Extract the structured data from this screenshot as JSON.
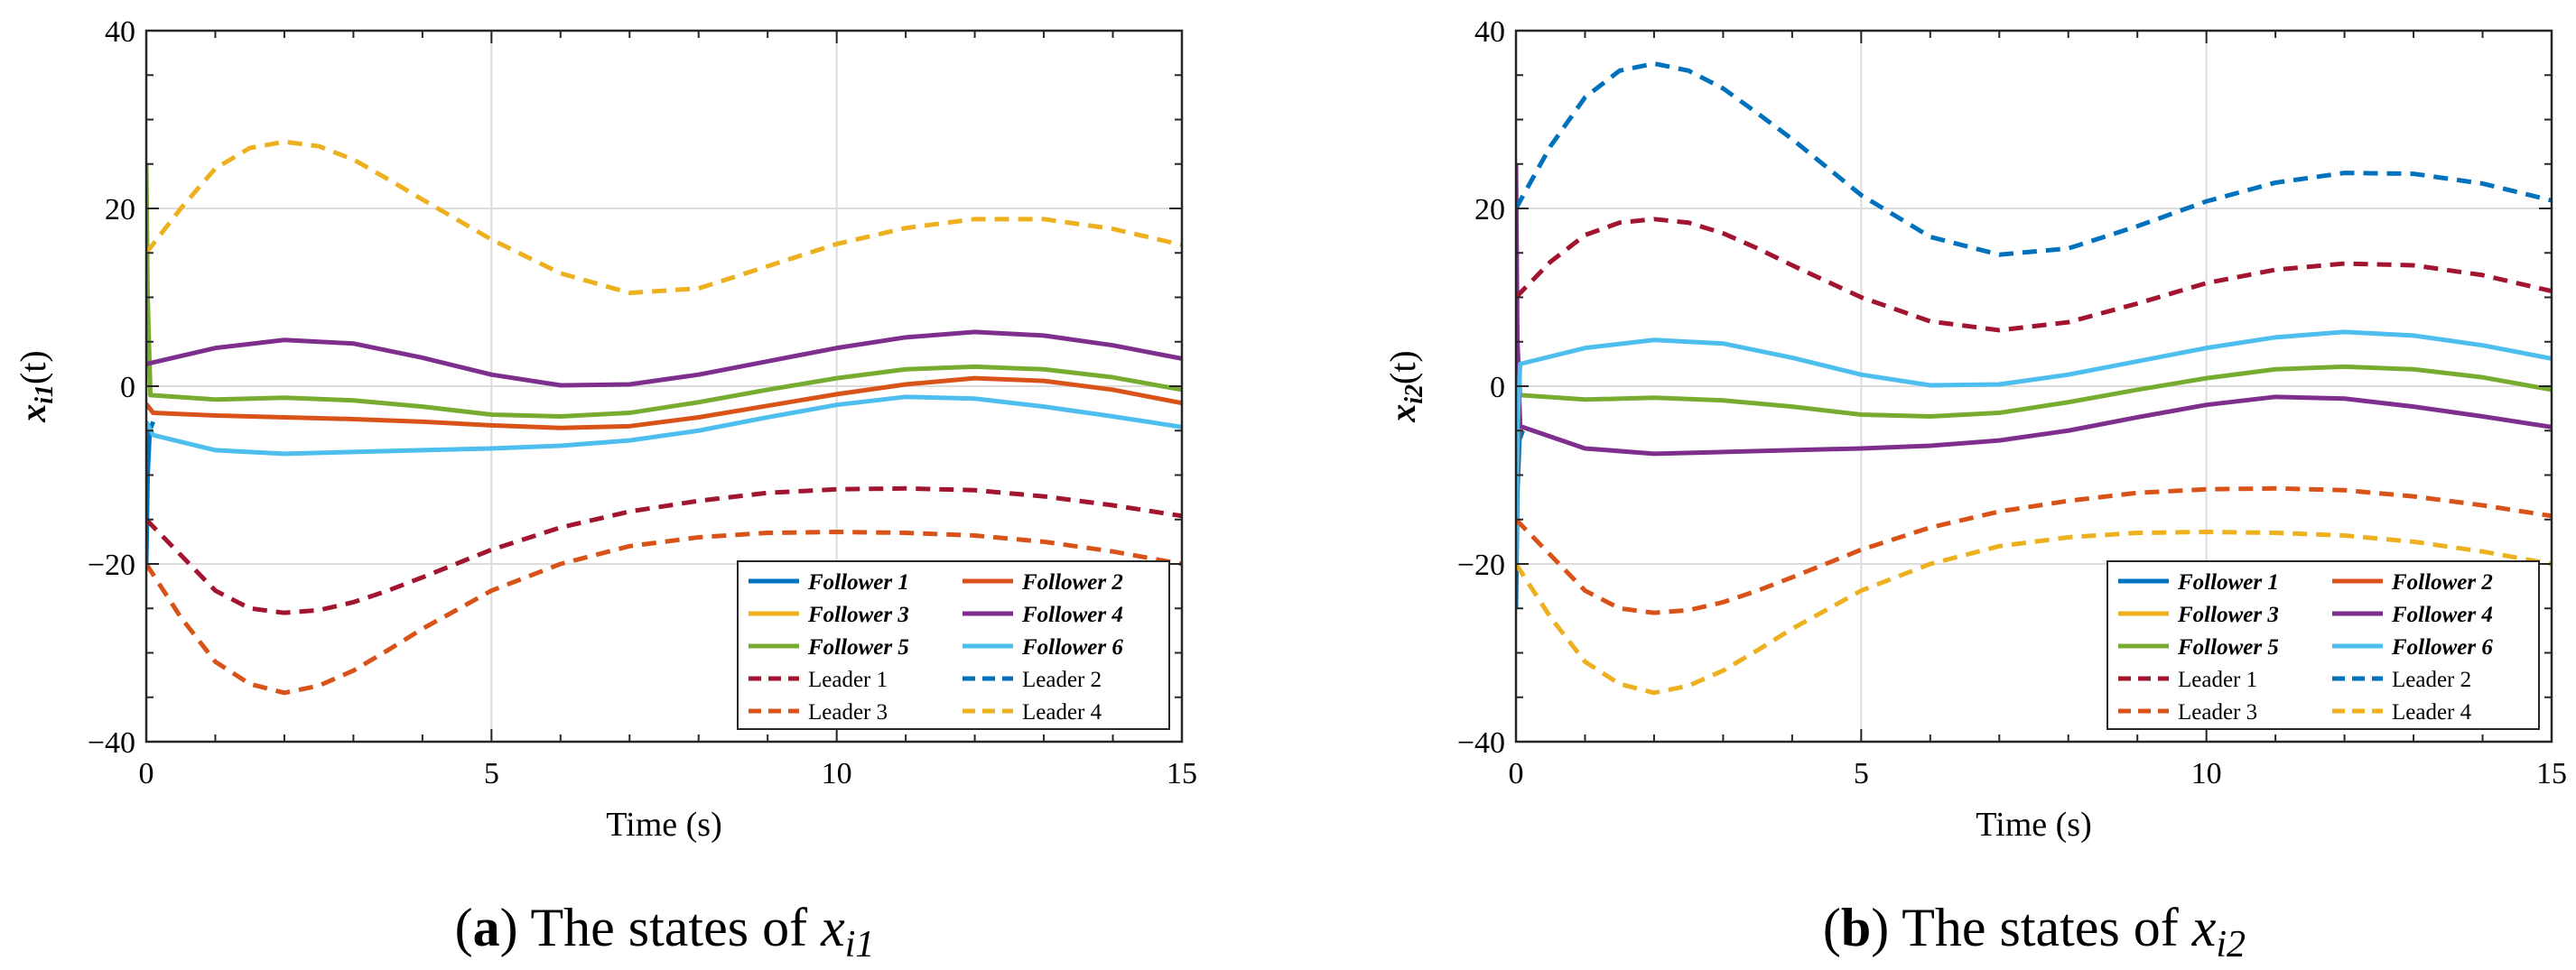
{
  "chart_data": [
    {
      "type": "line",
      "panel_id": "a",
      "caption_letter": "a",
      "caption_text": "The states of",
      "caption_var": "x",
      "caption_sub": "i1",
      "ylabel_var": "x",
      "ylabel_sub": "i1",
      "ylabel_arg": "(t)",
      "xlabel": "Time (s)",
      "xlim": [
        0,
        15
      ],
      "ylim": [
        -40,
        40
      ],
      "xticks": [
        "0",
        "5",
        "10",
        "15"
      ],
      "yticks": [
        "−40",
        "−20",
        "0",
        "20",
        "40"
      ],
      "grid": true,
      "legend_position": "lower-right",
      "legend_columns": 2,
      "series": [
        {
          "name": "Follower 1",
          "style": "solid",
          "color": "#0072BD",
          "t": [
            0,
            0.02,
            0.05,
            0.1
          ],
          "values": [
            -20,
            -10,
            -5,
            -4
          ]
        },
        {
          "name": "Follower 3",
          "style": "solid",
          "color": "#EDB120",
          "t": [
            0,
            0.02,
            0.05
          ],
          "values": [
            10,
            5,
            2
          ]
        },
        {
          "name": "Follower 5",
          "style": "solid",
          "color": "#77AC30",
          "t": [
            0,
            0.02,
            0.06,
            1,
            2,
            3,
            4,
            5,
            6,
            7,
            8,
            9,
            10,
            11,
            12,
            13,
            14,
            15
          ],
          "values": [
            25,
            10,
            -1,
            -1.5,
            -1.3,
            -1.6,
            -2.3,
            -3.2,
            -3.4,
            -3.0,
            -1.8,
            -0.4,
            0.9,
            1.9,
            2.2,
            1.9,
            1.0,
            -0.4
          ]
        },
        {
          "name": "Follower 2",
          "style": "solid",
          "color": "#D95319",
          "t": [
            0,
            0.1,
            1,
            2,
            3,
            4,
            5,
            6,
            7,
            8,
            9,
            10,
            11,
            12,
            13,
            14,
            15
          ],
          "values": [
            -2,
            -3,
            -3.3,
            -3.5,
            -3.7,
            -4.0,
            -4.4,
            -4.7,
            -4.5,
            -3.5,
            -2.2,
            -0.9,
            0.2,
            0.9,
            0.6,
            -0.4,
            -1.9
          ]
        },
        {
          "name": "Follower 4",
          "style": "solid",
          "color": "#7E2F8E",
          "t": [
            0,
            1,
            2,
            3,
            4,
            5,
            6,
            7,
            8,
            9,
            10,
            11,
            12,
            13,
            14,
            15
          ],
          "values": [
            2.5,
            4.3,
            5.2,
            4.8,
            3.2,
            1.3,
            0.1,
            0.2,
            1.3,
            2.8,
            4.3,
            5.5,
            6.1,
            5.7,
            4.6,
            3.1
          ]
        },
        {
          "name": "Follower 6",
          "style": "solid",
          "color": "#4DBEEE",
          "t": [
            0,
            0.1,
            1,
            2,
            3,
            4,
            5,
            6,
            7,
            8,
            9,
            10,
            11,
            12,
            13,
            14,
            15
          ],
          "values": [
            -4,
            -5.5,
            -7.2,
            -7.6,
            -7.4,
            -7.2,
            -7.0,
            -6.7,
            -6.1,
            -5.0,
            -3.5,
            -2.1,
            -1.2,
            -1.4,
            -2.3,
            -3.4,
            -4.6
          ]
        },
        {
          "name": "Leader  1",
          "style": "dashed",
          "color": "#A2142F",
          "t": [
            0,
            0.5,
            1,
            1.5,
            2,
            2.5,
            3,
            3.5,
            4,
            5,
            6,
            7,
            8,
            9,
            10,
            11,
            12,
            13,
            14,
            15
          ],
          "values": [
            -15,
            -19,
            -23,
            -25,
            -25.5,
            -25.2,
            -24.3,
            -23.0,
            -21.5,
            -18.4,
            -15.9,
            -14.1,
            -12.9,
            -12.0,
            -11.6,
            -11.5,
            -11.7,
            -12.4,
            -13.4,
            -14.6
          ]
        },
        {
          "name": "Leader  2",
          "style": "dashed",
          "color": "#0072BD",
          "t": [],
          "values": []
        },
        {
          "name": "Leader  3",
          "style": "dashed",
          "color": "#D95319",
          "t": [
            0,
            0.5,
            1,
            1.5,
            2,
            2.5,
            3,
            3.5,
            4,
            5,
            6,
            7,
            8,
            9,
            10,
            11,
            12,
            13,
            14,
            15
          ],
          "values": [
            -20,
            -26,
            -31,
            -33.5,
            -34.5,
            -33.7,
            -32.0,
            -29.7,
            -27.3,
            -23.0,
            -20.0,
            -18.0,
            -17.0,
            -16.5,
            -16.4,
            -16.5,
            -16.8,
            -17.5,
            -18.6,
            -20.0
          ]
        },
        {
          "name": "Leader  4",
          "style": "dashed",
          "color": "#EDB120",
          "t": [
            0,
            0.5,
            1,
            1.5,
            2,
            2.5,
            3,
            3.5,
            4,
            5,
            6,
            7,
            8,
            9,
            10,
            11,
            12,
            13,
            14,
            15
          ],
          "values": [
            15,
            20,
            24.5,
            26.8,
            27.5,
            27.0,
            25.5,
            23.3,
            21.0,
            16.5,
            12.7,
            10.5,
            11.0,
            13.5,
            16.0,
            17.8,
            18.8,
            18.8,
            17.7,
            15.9
          ]
        }
      ]
    },
    {
      "type": "line",
      "panel_id": "b",
      "caption_letter": "b",
      "caption_text": "The states of",
      "caption_var": "x",
      "caption_sub": "i2",
      "ylabel_var": "x",
      "ylabel_sub": "i2",
      "ylabel_arg": "(t)",
      "xlabel": "Time (s)",
      "xlim": [
        0,
        15
      ],
      "ylim": [
        -40,
        40
      ],
      "xticks": [
        "0",
        "5",
        "10",
        "15"
      ],
      "yticks": [
        "−40",
        "−20",
        "0",
        "20",
        "40"
      ],
      "grid": true,
      "legend_position": "lower-right",
      "legend_columns": 2,
      "series": [
        {
          "name": "Follower 1",
          "style": "solid",
          "color": "#0072BD",
          "t": [
            0,
            0.02,
            0.05,
            0.1
          ],
          "values": [
            -25,
            -12,
            -6,
            -5
          ]
        },
        {
          "name": "Follower 3",
          "style": "solid",
          "color": "#EDB120",
          "t": [
            0,
            0.02,
            0.05
          ],
          "values": [
            5,
            3,
            1
          ]
        },
        {
          "name": "Follower 5",
          "style": "solid",
          "color": "#77AC30",
          "t": [
            0,
            0.02,
            0.06,
            1,
            2,
            3,
            4,
            5,
            6,
            7,
            8,
            9,
            10,
            11,
            12,
            13,
            14,
            15
          ],
          "values": [
            12,
            5,
            -1,
            -1.5,
            -1.3,
            -1.6,
            -2.3,
            -3.2,
            -3.4,
            -3.0,
            -1.8,
            -0.4,
            0.9,
            1.9,
            2.2,
            1.9,
            1.0,
            -0.4
          ]
        },
        {
          "name": "Follower 2",
          "style": "solid",
          "color": "#D95319",
          "t": [
            0,
            0.02,
            0.05
          ],
          "values": [
            -15,
            -8,
            -4
          ]
        },
        {
          "name": "Follower 4",
          "style": "solid",
          "color": "#7E2F8E",
          "t": [
            0,
            0.02,
            0.06,
            1,
            2,
            3,
            4,
            5,
            6,
            7,
            8,
            9,
            10,
            11,
            12,
            13,
            14,
            15
          ],
          "values": [
            25,
            5,
            -4.5,
            -7.0,
            -7.6,
            -7.4,
            -7.2,
            -7.0,
            -6.7,
            -6.1,
            -5.0,
            -3.5,
            -2.1,
            -1.2,
            -1.4,
            -2.3,
            -3.4,
            -4.6
          ]
        },
        {
          "name": "Follower 6",
          "style": "solid",
          "color": "#4DBEEE",
          "t": [
            0,
            0.02,
            0.06,
            1,
            2,
            3,
            4,
            5,
            6,
            7,
            8,
            9,
            10,
            11,
            12,
            13,
            14,
            15
          ],
          "values": [
            -20,
            -5,
            2.5,
            4.3,
            5.2,
            4.8,
            3.2,
            1.3,
            0.1,
            0.2,
            1.3,
            2.8,
            4.3,
            5.5,
            6.1,
            5.7,
            4.6,
            3.1
          ]
        },
        {
          "name": "Leader  1",
          "style": "dashed",
          "color": "#A2142F",
          "t": [
            0,
            0.5,
            1,
            1.5,
            2,
            2.5,
            3,
            3.5,
            4,
            5,
            6,
            7,
            8,
            9,
            10,
            11,
            12,
            13,
            14,
            15
          ],
          "values": [
            10,
            14,
            17,
            18.4,
            18.8,
            18.4,
            17.2,
            15.5,
            13.6,
            10.0,
            7.3,
            6.3,
            7.2,
            9.3,
            11.6,
            13.1,
            13.8,
            13.6,
            12.5,
            10.7
          ]
        },
        {
          "name": "Leader  2",
          "style": "dashed",
          "color": "#0072BD",
          "t": [
            0,
            0.5,
            1,
            1.5,
            2,
            2.5,
            3,
            3.5,
            4,
            5,
            6,
            7,
            8,
            9,
            10,
            11,
            12,
            13,
            14,
            15
          ],
          "values": [
            20,
            27,
            32.5,
            35.5,
            36.3,
            35.5,
            33.5,
            30.7,
            27.8,
            21.5,
            16.8,
            14.8,
            15.5,
            18.0,
            20.8,
            22.9,
            24.0,
            23.9,
            22.8,
            20.9
          ]
        },
        {
          "name": "Leader  3",
          "style": "dashed",
          "color": "#D95319",
          "t": [
            0,
            0.5,
            1,
            1.5,
            2,
            2.5,
            3,
            3.5,
            4,
            5,
            6,
            7,
            8,
            9,
            10,
            11,
            12,
            13,
            14,
            15
          ],
          "values": [
            -15,
            -19,
            -23,
            -25,
            -25.5,
            -25.2,
            -24.3,
            -23.0,
            -21.5,
            -18.4,
            -15.9,
            -14.1,
            -12.9,
            -12.0,
            -11.6,
            -11.5,
            -11.7,
            -12.4,
            -13.4,
            -14.6
          ]
        },
        {
          "name": "Leader  4",
          "style": "dashed",
          "color": "#EDB120",
          "t": [
            0,
            0.5,
            1,
            1.5,
            2,
            2.5,
            3,
            3.5,
            4,
            5,
            6,
            7,
            8,
            9,
            10,
            11,
            12,
            13,
            14,
            15
          ],
          "values": [
            -20,
            -26,
            -31,
            -33.5,
            -34.5,
            -33.7,
            -32.0,
            -29.7,
            -27.3,
            -23.0,
            -20.0,
            -18.0,
            -17.0,
            -16.5,
            -16.4,
            -16.5,
            -16.8,
            -17.5,
            -18.6,
            -20.0
          ]
        }
      ]
    }
  ]
}
